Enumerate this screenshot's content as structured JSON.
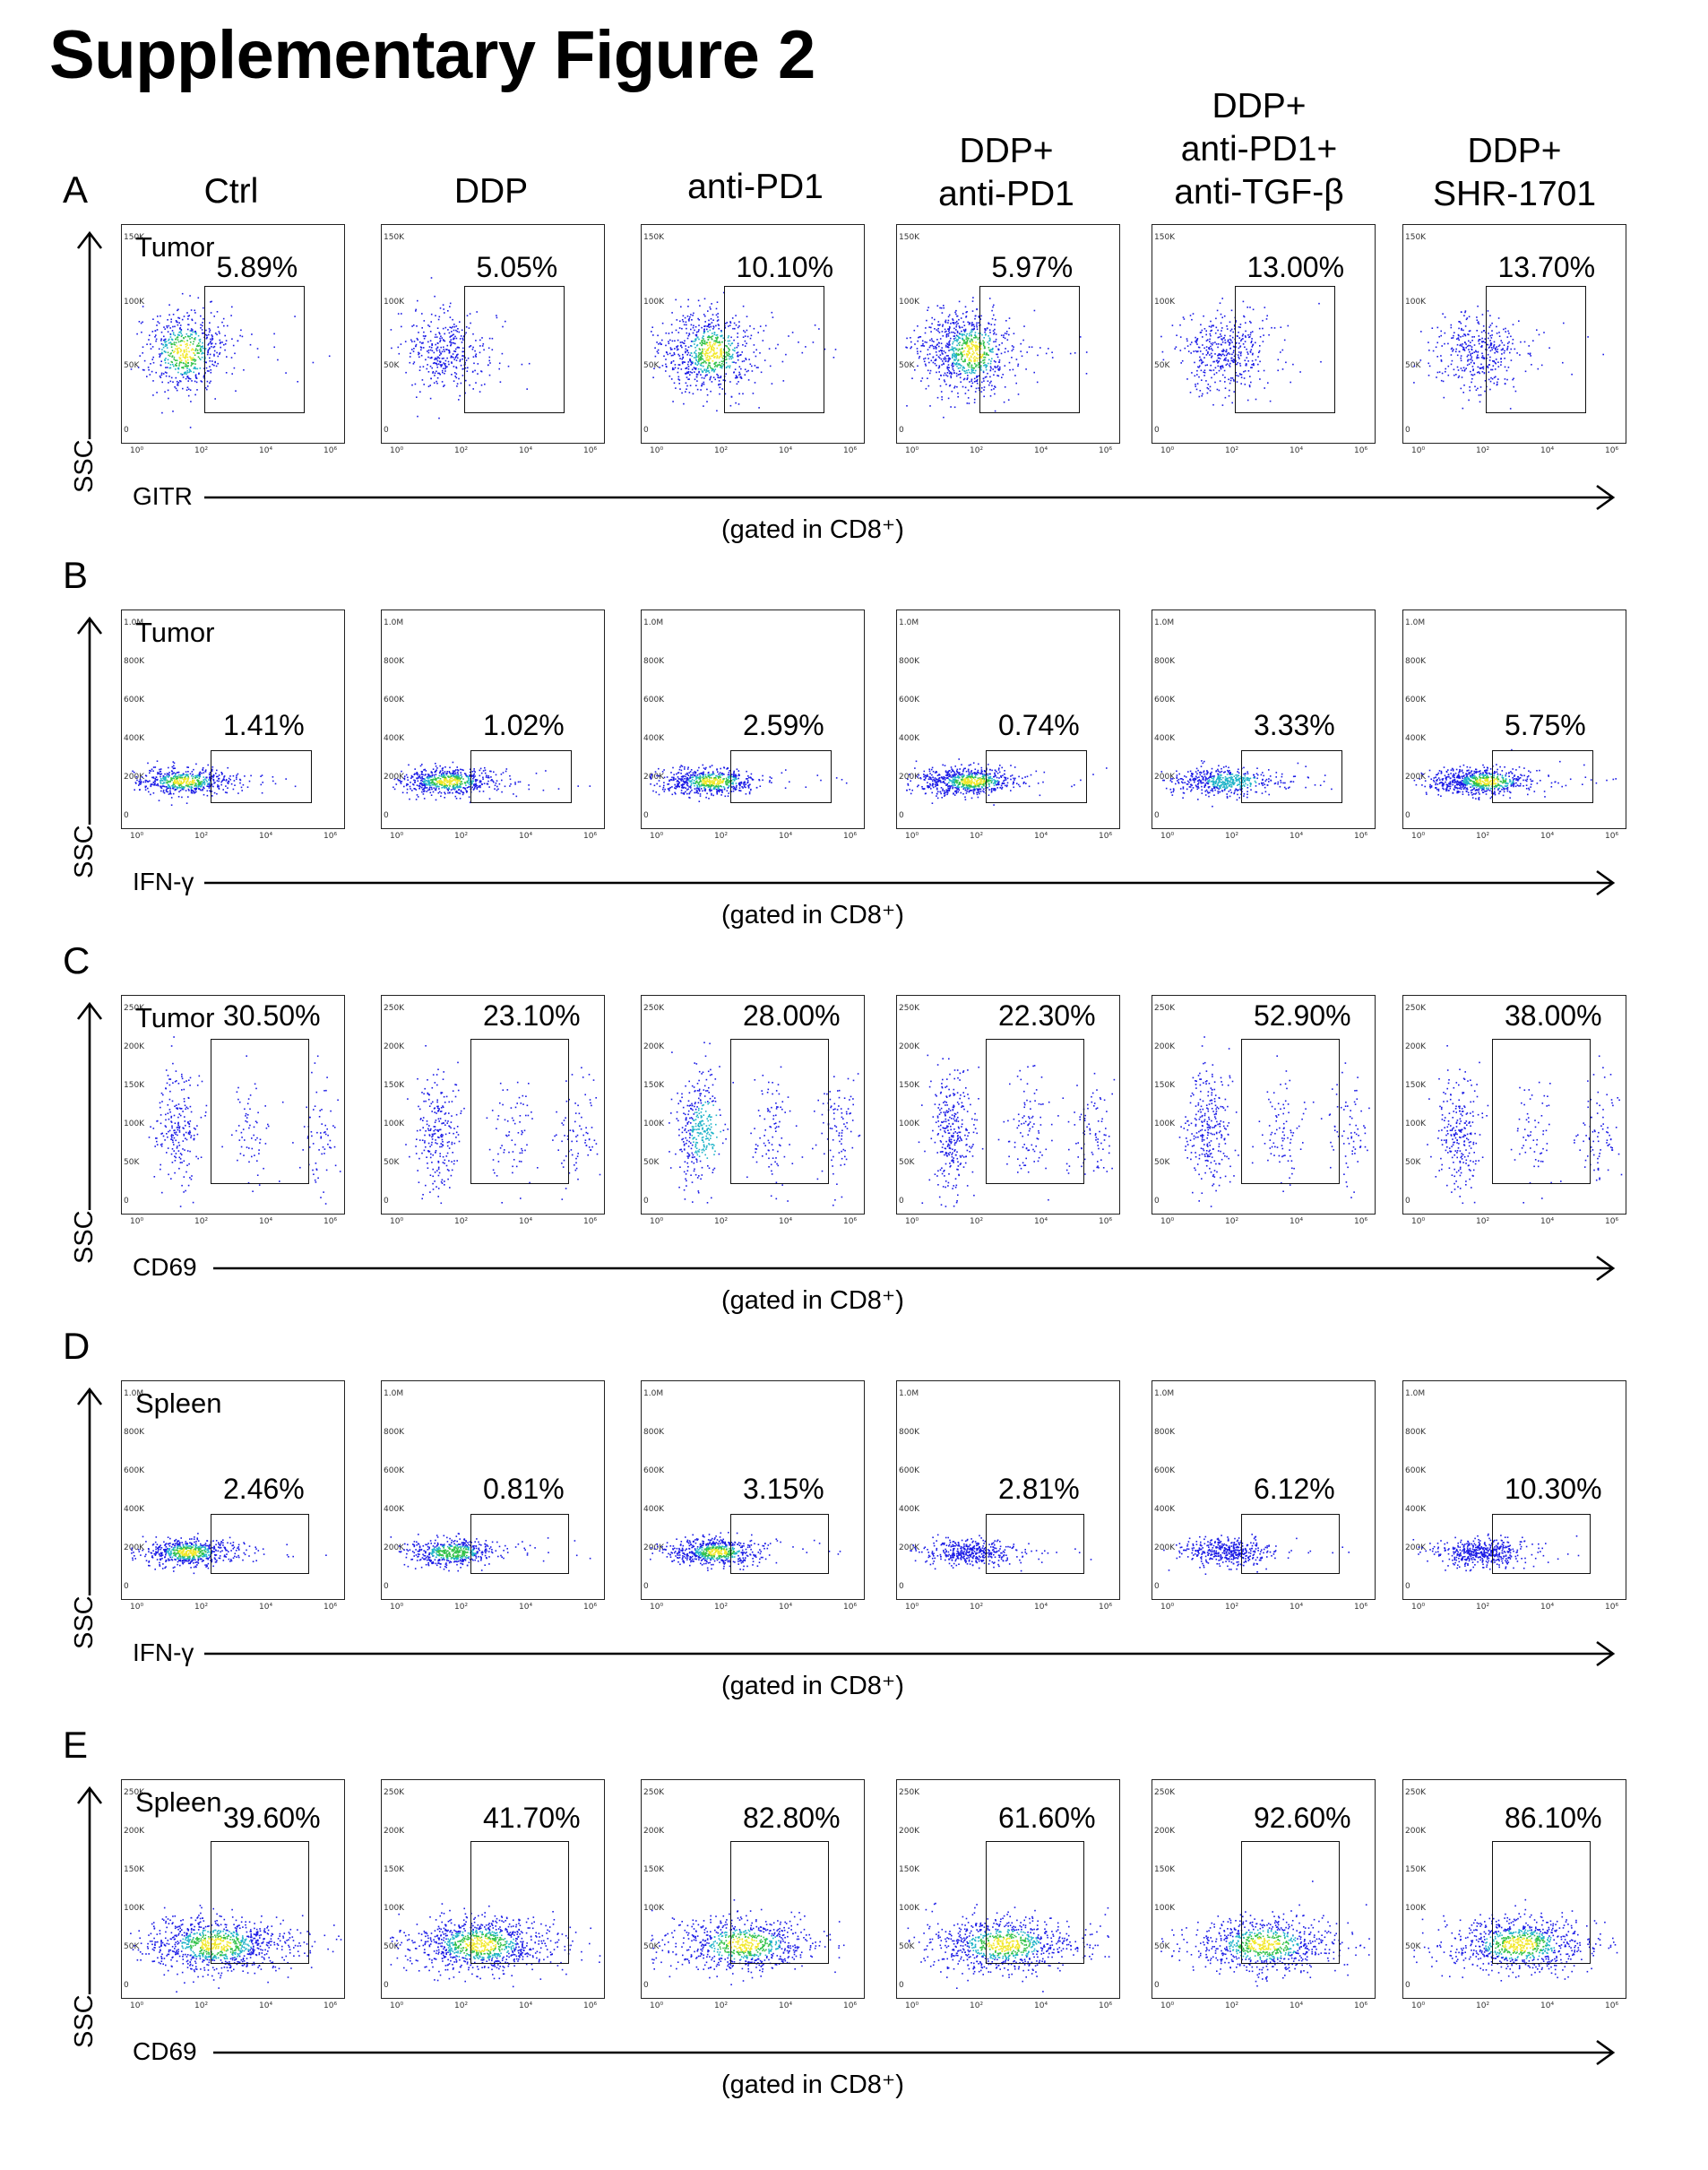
{
  "figure_title": "Supplementary Figure 2",
  "columns": [
    {
      "lines": [
        "Ctrl"
      ]
    },
    {
      "lines": [
        "DDP"
      ]
    },
    {
      "lines": [
        "anti-PD1"
      ]
    },
    {
      "lines": [
        "DDP+",
        "anti-PD1"
      ]
    },
    {
      "lines": [
        "DDP+",
        "anti-PD1+",
        "anti-TGF-β"
      ]
    },
    {
      "lines": [
        "DDP+",
        "SHR-1701"
      ]
    }
  ],
  "gated_label": "(gated in CD8⁺)",
  "y_axis_label": "SSC",
  "panels": [
    {
      "letter": "A",
      "tissue": "Tumor",
      "marker": "GITR",
      "percentages": [
        "5.89%",
        "5.05%",
        "10.10%",
        "5.97%",
        "13.00%",
        "13.70%"
      ],
      "density": [
        0.55,
        0.3,
        0.75,
        0.85,
        0.35,
        0.3
      ],
      "y_ticks": [
        "150K",
        "100K",
        "50K",
        "0"
      ],
      "x_ticks": [
        "10⁰",
        "10²",
        "10⁴",
        "10⁶"
      ]
    },
    {
      "letter": "B",
      "tissue": "Tumor",
      "marker": "IFN-γ",
      "percentages": [
        "1.41%",
        "1.02%",
        "2.59%",
        "0.74%",
        "3.33%",
        "5.75%"
      ],
      "density": [
        0.55,
        0.6,
        0.6,
        0.7,
        0.45,
        0.7
      ],
      "y_ticks": [
        "1.0M",
        "800K",
        "600K",
        "400K",
        "200K",
        "0"
      ],
      "x_ticks": [
        "10⁰",
        "10²",
        "10⁴",
        "10⁶"
      ]
    },
    {
      "letter": "C",
      "tissue": "Tumor",
      "marker": "CD69",
      "percentages": [
        "30.50%",
        "23.10%",
        "28.00%",
        "22.30%",
        "52.90%",
        "38.00%"
      ],
      "density": [
        0.25,
        0.3,
        0.45,
        0.4,
        0.35,
        0.3
      ],
      "y_ticks": [
        "250K",
        "200K",
        "150K",
        "100K",
        "50K",
        "0"
      ],
      "x_ticks": [
        "10⁰",
        "10²",
        "10⁴",
        "10⁶"
      ]
    },
    {
      "letter": "D",
      "tissue": "Spleen",
      "marker": "IFN-γ",
      "percentages": [
        "2.46%",
        "0.81%",
        "3.15%",
        "2.81%",
        "6.12%",
        "10.30%"
      ],
      "density": [
        0.6,
        0.5,
        0.6,
        0.35,
        0.35,
        0.4
      ],
      "y_ticks": [
        "1.0M",
        "800K",
        "600K",
        "400K",
        "200K",
        "0"
      ],
      "x_ticks": [
        "10⁰",
        "10²",
        "10⁴",
        "10⁶"
      ]
    },
    {
      "letter": "E",
      "tissue": "Spleen",
      "marker": "CD69",
      "percentages": [
        "39.60%",
        "41.70%",
        "82.80%",
        "61.60%",
        "92.60%",
        "86.10%"
      ],
      "density": [
        1.0,
        1.0,
        0.75,
        0.85,
        0.8,
        0.85
      ],
      "y_ticks": [
        "250K",
        "200K",
        "150K",
        "100K",
        "50K",
        "0"
      ],
      "x_ticks": [
        "10⁰",
        "10²",
        "10⁴",
        "10⁶"
      ]
    }
  ]
}
